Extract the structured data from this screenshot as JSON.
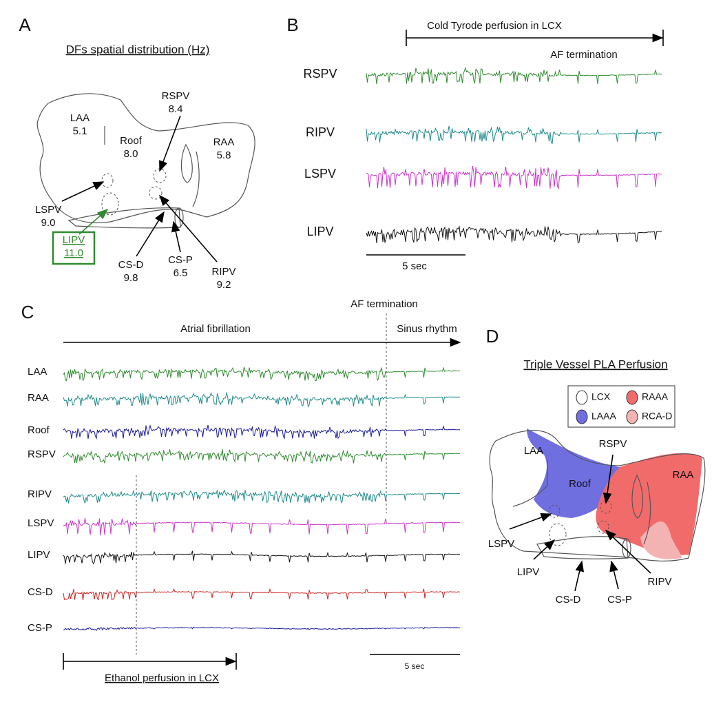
{
  "panel_a": {
    "letter": "A",
    "title": "DFs spatial distribution (Hz)",
    "regions": [
      {
        "name": "LAA",
        "value": "5.1"
      },
      {
        "name": "Roof",
        "value": "8.0"
      },
      {
        "name": "RSPV",
        "value": "8.4"
      },
      {
        "name": "RAA",
        "value": "5.8"
      },
      {
        "name": "LSPV",
        "value": "9.0"
      },
      {
        "name": "LIPV",
        "value": "11.0"
      },
      {
        "name": "RIPV",
        "value": "9.2"
      },
      {
        "name": "CS-D",
        "value": "9.8"
      },
      {
        "name": "CS-P",
        "value": "6.5"
      }
    ]
  },
  "panel_b": {
    "letter": "B",
    "perfusion": "Cold Tyrode perfusion in LCX",
    "event": "AF termination",
    "scale": "5 sec",
    "traces": [
      {
        "name": "RSPV",
        "color": "#2e8b2e"
      },
      {
        "name": "RIPV",
        "color": "#1f8a8a"
      },
      {
        "name": "LSPV",
        "color": "#cc33cc"
      },
      {
        "name": "LIPV",
        "color": "#111111"
      }
    ]
  },
  "panel_c": {
    "letter": "C",
    "event": "AF termination",
    "phase_1": "Atrial fibrillation",
    "phase_2": "Sinus rhythm",
    "perfusion": "Ethanol perfusion in LCX",
    "scale": "5 sec",
    "traces": [
      {
        "name": "LAA",
        "color": "#2e8b2e"
      },
      {
        "name": "RAA",
        "color": "#1f8a8a"
      },
      {
        "name": "Roof",
        "color": "#1a1a9a"
      },
      {
        "name": "RSPV",
        "color": "#2e8b2e"
      },
      {
        "name": "RIPV",
        "color": "#1f8a8a"
      },
      {
        "name": "LSPV",
        "color": "#cc33cc"
      },
      {
        "name": "LIPV",
        "color": "#111111"
      },
      {
        "name": "CS-D",
        "color": "#cc2222"
      },
      {
        "name": "CS-P",
        "color": "#1a1a9a"
      }
    ]
  },
  "panel_d": {
    "letter": "D",
    "title": "Triple Vessel PLA Perfusion",
    "legend": [
      {
        "label": "LCX",
        "color": "#ffffff"
      },
      {
        "label": "RAAA",
        "color": "#f26b6b"
      },
      {
        "label": "LAAA",
        "color": "#6f6fe0"
      },
      {
        "label": "RCA-D",
        "color": "#f4b3b3"
      }
    ],
    "labels": [
      "LAA",
      "Roof",
      "RAA",
      "RSPV",
      "LSPV",
      "LIPV",
      "RIPV",
      "CS-D",
      "CS-P"
    ]
  }
}
